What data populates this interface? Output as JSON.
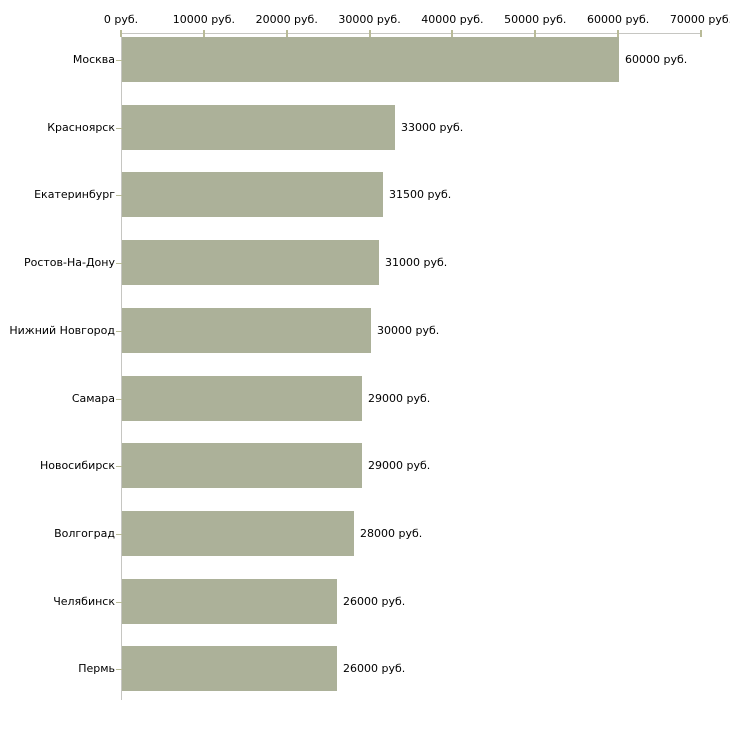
{
  "chart_data": {
    "type": "bar",
    "orientation": "horizontal",
    "title": "",
    "xlabel": "",
    "ylabel": "",
    "unit": "руб.",
    "categories": [
      "Москва",
      "Красноярск",
      "Екатеринбург",
      "Ростов-На-Дону",
      "Нижний Новгород",
      "Самара",
      "Новосибирск",
      "Волгоград",
      "Челябинск",
      "Пермь"
    ],
    "values": [
      60000,
      33000,
      31500,
      31000,
      30000,
      29000,
      29000,
      28000,
      26000,
      26000
    ],
    "value_labels": [
      "60000 руб.",
      "33000 руб.",
      "31500 руб.",
      "31000 руб.",
      "30000 руб.",
      "29000 руб.",
      "29000 руб.",
      "28000 руб.",
      "26000 руб.",
      "26000 руб."
    ],
    "x_ticks": [
      0,
      10000,
      20000,
      30000,
      40000,
      50000,
      60000,
      70000
    ],
    "x_tick_labels": [
      "0 руб.",
      "10000 руб.",
      "20000 руб.",
      "30000 руб.",
      "40000 руб.",
      "50000 руб.",
      "60000 руб.",
      "70000 руб."
    ],
    "xlim": [
      0,
      70000
    ],
    "grid": false,
    "legend": false,
    "bar_color": "#acb199",
    "axis_color": "#c6c6c2",
    "tick_color": "#b9bb98",
    "text_color": "#000000",
    "background_color": "#ffffff"
  }
}
